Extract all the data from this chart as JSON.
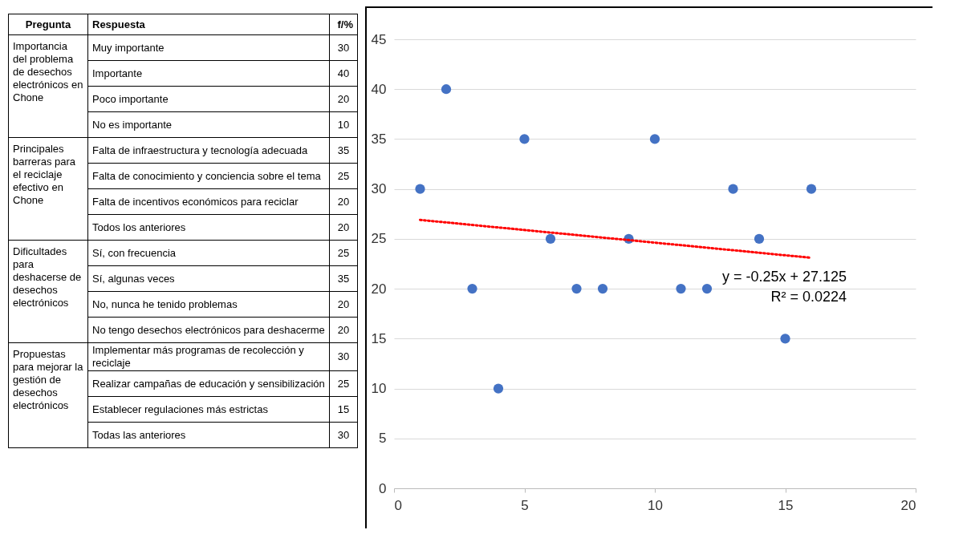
{
  "chart_data": {
    "type": "scatter",
    "x": [
      1,
      2,
      3,
      4,
      5,
      6,
      7,
      8,
      9,
      10,
      11,
      12,
      13,
      14,
      15,
      16
    ],
    "series": [
      {
        "color": "#4472c4",
        "values": [
          30,
          40,
          20,
          10,
          35,
          25,
          20,
          20,
          25,
          35,
          20,
          20,
          30,
          25,
          15,
          30
        ]
      },
      {
        "type": "line",
        "color": "#ff0000",
        "line_style": "dotted",
        "marker": "none",
        "x": [
          1,
          16
        ],
        "values": [
          26.9,
          23.1
        ]
      }
    ],
    "xlim": [
      0,
      20
    ],
    "xticks": [
      0,
      5,
      10,
      15,
      20
    ],
    "ylim": [
      0,
      45
    ],
    "yticks": [
      0,
      5,
      10,
      15,
      20,
      25,
      30,
      35,
      40,
      45
    ],
    "grid": "y",
    "marker": "circle",
    "annotations": [
      "Pregunta",
      "Respuesta",
      "f/%",
      "Importancia del problema de desechos electrónicos en Chone",
      "Principales barreras para el reciclaje efectivo en Chone",
      "Dificultades para deshacerse de desechos electrónicos",
      "Propuestas para mejorar la gestión de desechos electrónicos",
      "Muy importante",
      "Importante",
      "Poco importante",
      "No es importante",
      "Falta de infraestructura y tecnología adecuada",
      "Falta de conocimiento y conciencia sobre el tema",
      "Falta de incentivos económicos para reciclar",
      "Todos los anteriores",
      "Sí, con frecuencia",
      "Sí, algunas veces",
      "No, nunca he tenido problemas",
      "No tengo desechos electrónicos para deshacerme",
      "Implementar más programas de recolección y reciclaje",
      "Realizar campañas de educación y sensibilización",
      "Establecer regulaciones más estrictas",
      "Todas las anteriores",
      "30",
      "40",
      "20",
      "10",
      "35",
      "25",
      "20",
      "20",
      "25",
      "35",
      "20",
      "20",
      "30",
      "25",
      "15",
      "30",
      "y = -0.25x + 27.125",
      "R² = 0.0224"
    ]
  }
}
